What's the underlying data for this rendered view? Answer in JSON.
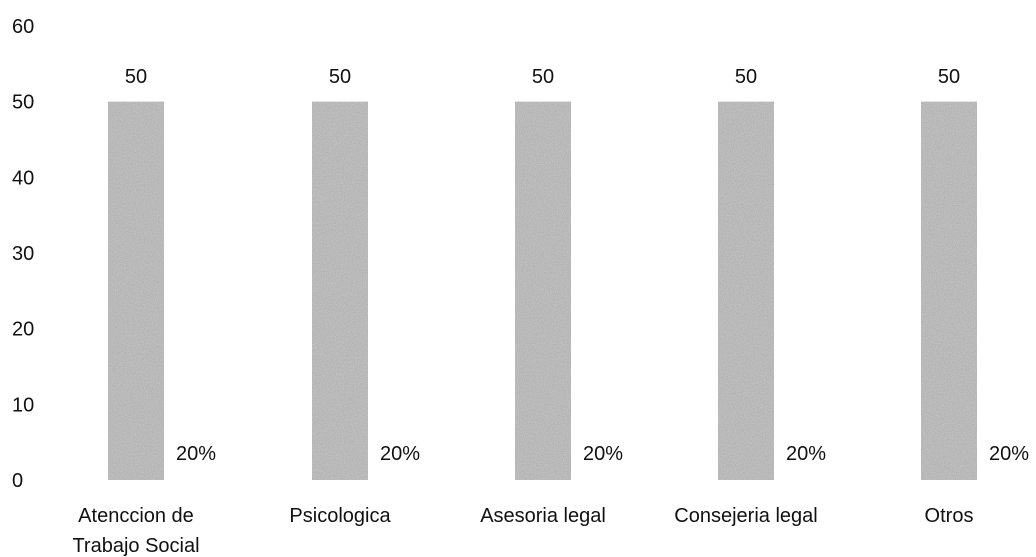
{
  "chart_data": {
    "type": "bar",
    "categories": [
      "Atenccion de Trabajo Social",
      "Psicologica",
      "Asesoria legal",
      "Consejeria legal",
      "Otros"
    ],
    "category_lines": [
      [
        "Atenccion de",
        "Trabajo Social"
      ],
      [
        "Psicologica"
      ],
      [
        "Asesoria legal"
      ],
      [
        "Consejeria legal"
      ],
      [
        "Otros"
      ]
    ],
    "values": [
      50,
      50,
      50,
      50,
      50
    ],
    "value_labels": [
      "50",
      "50",
      "50",
      "50",
      "50"
    ],
    "percent_labels": [
      "20%",
      "20%",
      "20%",
      "20%",
      "20%"
    ],
    "yticks": [
      0,
      10,
      20,
      30,
      40,
      50,
      60
    ],
    "ylim": [
      0,
      60
    ],
    "grid": false,
    "legend": "none",
    "bar_color": "#b3b3b3",
    "bar_texture": "stippled-gray",
    "title": "",
    "xlabel": "",
    "ylabel": ""
  }
}
